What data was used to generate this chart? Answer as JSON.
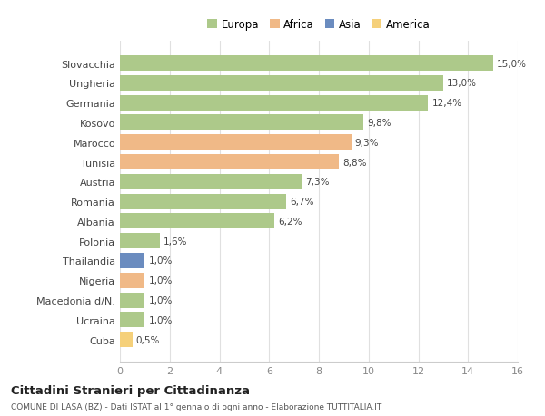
{
  "categories": [
    "Slovacchia",
    "Ungheria",
    "Germania",
    "Kosovo",
    "Marocco",
    "Tunisia",
    "Austria",
    "Romania",
    "Albania",
    "Polonia",
    "Thailandia",
    "Nigeria",
    "Macedonia d/N.",
    "Ucraina",
    "Cuba"
  ],
  "values": [
    15.0,
    13.0,
    12.4,
    9.8,
    9.3,
    8.8,
    7.3,
    6.7,
    6.2,
    1.6,
    1.0,
    1.0,
    1.0,
    1.0,
    0.5
  ],
  "labels": [
    "15,0%",
    "13,0%",
    "12,4%",
    "9,8%",
    "9,3%",
    "8,8%",
    "7,3%",
    "6,7%",
    "6,2%",
    "1,6%",
    "1,0%",
    "1,0%",
    "1,0%",
    "1,0%",
    "0,5%"
  ],
  "continents": [
    "Europa",
    "Europa",
    "Europa",
    "Europa",
    "Africa",
    "Africa",
    "Europa",
    "Europa",
    "Europa",
    "Europa",
    "Asia",
    "Africa",
    "Europa",
    "Europa",
    "America"
  ],
  "colors": {
    "Europa": "#adc98a",
    "Africa": "#f0b987",
    "Asia": "#6b8cbf",
    "America": "#f5d07a"
  },
  "legend_order": [
    "Europa",
    "Africa",
    "Asia",
    "America"
  ],
  "title": "Cittadini Stranieri per Cittadinanza",
  "subtitle": "COMUNE DI LASA (BZ) - Dati ISTAT al 1° gennaio di ogni anno - Elaborazione TUTTITALIA.IT",
  "xlim": [
    0,
    16
  ],
  "xticks": [
    0,
    2,
    4,
    6,
    8,
    10,
    12,
    14,
    16
  ],
  "background_color": "#ffffff",
  "grid_color": "#e0e0e0"
}
